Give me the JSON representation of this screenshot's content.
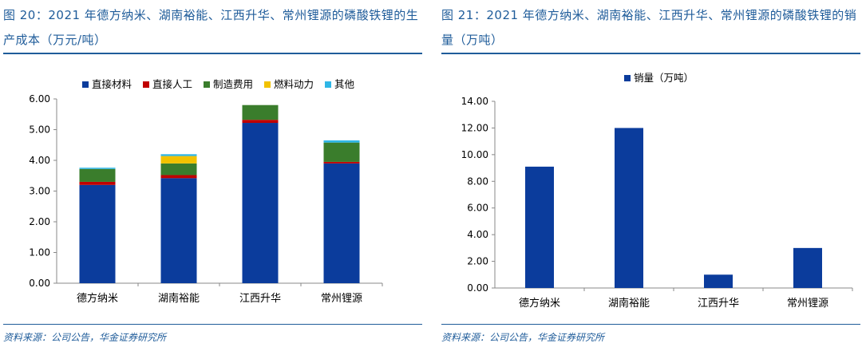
{
  "left": {
    "title": "图 20：2021 年德方纳米、湖南裕能、江西升华、常州锂源的磷酸铁锂的生产成本（万元/吨）",
    "source": "资料来源：公司公告，华金证券研究所"
  },
  "right": {
    "title": "图 21：2021 年德方纳米、湖南裕能、江西升华、常州锂源的磷酸铁锂的销量（万吨）",
    "source": "资料来源：公司公告，华金证券研究所"
  },
  "chart_data": [
    {
      "type": "bar",
      "stacked": true,
      "title": "",
      "xlabel": "",
      "ylabel": "",
      "categories": [
        "德方纳米",
        "湖南裕能",
        "江西升华",
        "常州锂源"
      ],
      "series": [
        {
          "name": "直接材料",
          "color": "#0B3C9C",
          "values": [
            3.2,
            3.42,
            5.22,
            3.9
          ]
        },
        {
          "name": "直接人工",
          "color": "#C00000",
          "values": [
            0.1,
            0.1,
            0.1,
            0.05
          ]
        },
        {
          "name": "制造费用",
          "color": "#3A7D2C",
          "values": [
            0.42,
            0.38,
            0.48,
            0.63
          ]
        },
        {
          "name": "燃料动力",
          "color": "#F2C200",
          "values": [
            0.0,
            0.24,
            0.0,
            0.0
          ]
        },
        {
          "name": "其他",
          "color": "#2FB6E6",
          "values": [
            0.04,
            0.06,
            0.0,
            0.07
          ]
        }
      ],
      "ylim": [
        0,
        6
      ],
      "yticks": [
        "0.00",
        "1.00",
        "2.00",
        "3.00",
        "4.00",
        "5.00",
        "6.00"
      ],
      "legend_position": "top",
      "grid": false
    },
    {
      "type": "bar",
      "title": "",
      "xlabel": "",
      "ylabel": "",
      "categories": [
        "德方纳米",
        "湖南裕能",
        "江西升华",
        "常州锂源"
      ],
      "series": [
        {
          "name": "销量（万吨）",
          "color": "#0B3C9C",
          "values": [
            9.1,
            12.0,
            1.0,
            3.0
          ]
        }
      ],
      "ylim": [
        0,
        14
      ],
      "yticks": [
        "0.00",
        "2.00",
        "4.00",
        "6.00",
        "8.00",
        "10.00",
        "12.00",
        "14.00"
      ],
      "legend_position": "top",
      "grid": false
    }
  ]
}
